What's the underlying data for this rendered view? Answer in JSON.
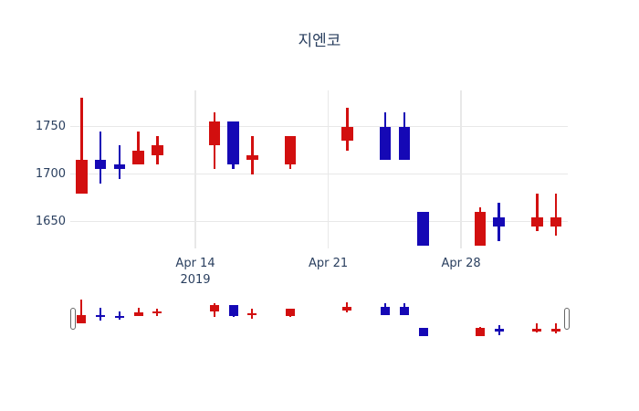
{
  "title": "지엔코",
  "chart_data": {
    "type": "candlestick",
    "title": "지엔코",
    "legend": "none",
    "grid": true,
    "gridline_color": "#e8e8e8",
    "background": "#ffffff",
    "increasing_color": "#d20f0f",
    "decreasing_color": "#1508b5",
    "text_color": "#2a3f5f",
    "xlabel": "",
    "ylabel": "",
    "y_ticks": [
      1750,
      1700,
      1650
    ],
    "x_ticks": [
      {
        "label": "Apr 14",
        "sublabel": "2019",
        "day": 6
      },
      {
        "label": "Apr 21",
        "sublabel": "",
        "day": 13
      },
      {
        "label": "Apr 28",
        "sublabel": "",
        "day": 20
      }
    ],
    "x_range_days": [
      -0.59,
      25.62
    ],
    "y_range": [
      1622,
      1788
    ],
    "rangeslider": {
      "enabled": true,
      "y_range": [
        1625,
        1780
      ]
    },
    "candles": [
      {
        "date": "Apr 8",
        "day": 0,
        "open": 1680,
        "high": 1780,
        "low": 1680,
        "close": 1715
      },
      {
        "date": "Apr 9",
        "day": 1,
        "open": 1715,
        "high": 1745,
        "low": 1690,
        "close": 1705
      },
      {
        "date": "Apr 10",
        "day": 2,
        "open": 1710,
        "high": 1730,
        "low": 1695,
        "close": 1705
      },
      {
        "date": "Apr 11",
        "day": 3,
        "open": 1710,
        "high": 1745,
        "low": 1710,
        "close": 1725
      },
      {
        "date": "Apr 12",
        "day": 4,
        "open": 1720,
        "high": 1740,
        "low": 1710,
        "close": 1730
      },
      {
        "date": "Apr 15",
        "day": 7,
        "open": 1730,
        "high": 1765,
        "low": 1705,
        "close": 1755
      },
      {
        "date": "Apr 16",
        "day": 8,
        "open": 1755,
        "high": 1755,
        "low": 1705,
        "close": 1710
      },
      {
        "date": "Apr 17",
        "day": 9,
        "open": 1715,
        "high": 1740,
        "low": 1700,
        "close": 1720
      },
      {
        "date": "Apr 19",
        "day": 11,
        "open": 1710,
        "high": 1740,
        "low": 1705,
        "close": 1740
      },
      {
        "date": "Apr 22",
        "day": 14,
        "open": 1735,
        "high": 1770,
        "low": 1725,
        "close": 1750
      },
      {
        "date": "Apr 24",
        "day": 16,
        "open": 1750,
        "high": 1765,
        "low": 1715,
        "close": 1715
      },
      {
        "date": "Apr 25",
        "day": 17,
        "open": 1750,
        "high": 1765,
        "low": 1715,
        "close": 1715
      },
      {
        "date": "Apr 26",
        "day": 18,
        "open": 1660,
        "high": 1660,
        "low": 1625,
        "close": 1625
      },
      {
        "date": "Apr 29",
        "day": 21,
        "open": 1625,
        "high": 1665,
        "low": 1625,
        "close": 1660
      },
      {
        "date": "Apr 30",
        "day": 22,
        "open": 1655,
        "high": 1670,
        "low": 1630,
        "close": 1645
      },
      {
        "date": "May 2",
        "day": 24,
        "open": 1645,
        "high": 1680,
        "low": 1640,
        "close": 1655
      },
      {
        "date": "May 3",
        "day": 25,
        "open": 1645,
        "high": 1680,
        "low": 1635,
        "close": 1655
      }
    ]
  }
}
